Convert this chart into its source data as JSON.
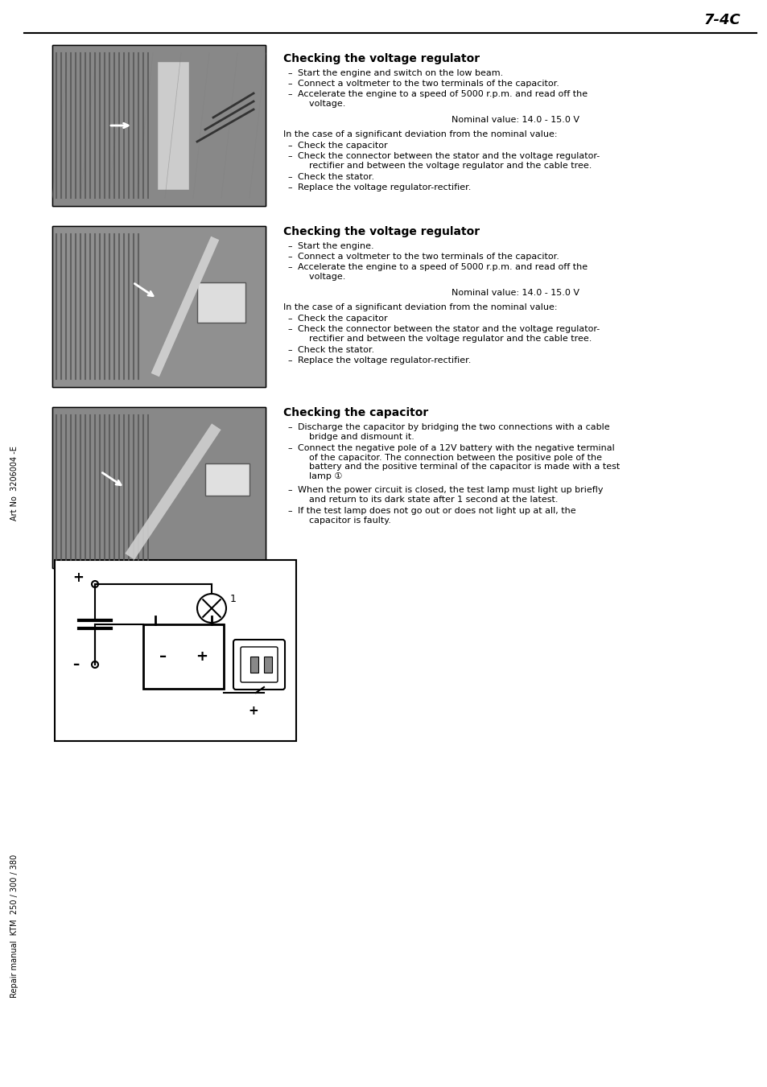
{
  "page_number": "7-4C",
  "bg_color": "#ffffff",
  "border_color": "#000000",
  "text_color": "#000000",
  "gray_color": "#888888",
  "section1_title": "Checking the voltage regulator",
  "section1_bullets": [
    "Start the engine and switch on the low beam.",
    "Connect a voltmeter to the two terminals of the capacitor.",
    "Accelerate the engine to a speed of 5000 r.p.m. and read off the\nvoltage."
  ],
  "section1_nominal": "Nominal value: 14.0 - 15.0 V",
  "section1_deviation": "In the case of a significant deviation from the nominal value:",
  "section1_checks": [
    "Check the capacitor",
    "Check the connector between the stator and the voltage regulator-\nrectifier and between the voltage regulator and the cable tree.",
    "Check the stator.",
    "Replace the voltage regulator-rectifier."
  ],
  "section2_title": "Checking the voltage regulator",
  "section2_bullets": [
    "Start the engine.",
    "Connect a voltmeter to the two terminals of the capacitor.",
    "Accelerate the engine to a speed of 5000 r.p.m. and read off the\nvoltage."
  ],
  "section2_nominal": "Nominal value: 14.0 - 15.0 V",
  "section2_deviation": "In the case of a significant deviation from the nominal value:",
  "section2_checks": [
    "Check the capacitor",
    "Check the connector between the stator and the voltage regulator-\nrectifier and between the voltage regulator and the cable tree.",
    "Check the stator.",
    "Replace the voltage regulator-rectifier."
  ],
  "section3_title": "Checking the capacitor",
  "section3_bullets": [
    "Discharge the capacitor by bridging the two connections with a cable\nbridge and dismount it.",
    "Connect the negative pole of a 12V battery with the negative terminal\nof the capacitor. The connection between the positive pole of the\nbattery and the positive terminal of the capacitor is made with a test\nlamp ①",
    "When the power circuit is closed, the test lamp must light up briefly\nand return to its dark state after 1 second at the latest.",
    "If the test lamp does not go out or does not light up at all, the\ncapacitor is faulty."
  ],
  "left_sidebar_text": "Art No  3206004 -E",
  "bottom_sidebar_text": "Repair manual  KTM  250 / 300 / 380",
  "photo_gray": "#b0b0b0",
  "diagram_border": "#000000",
  "line_width": 1.5
}
